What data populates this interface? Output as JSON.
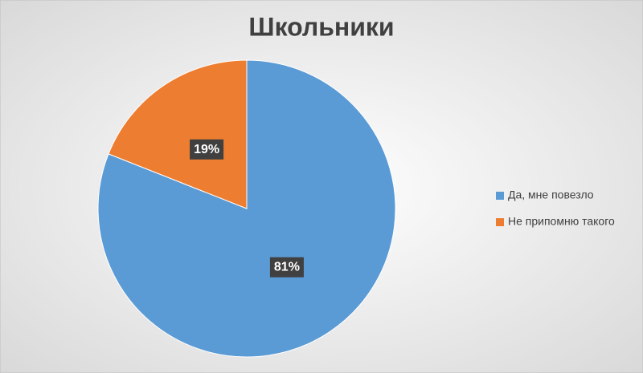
{
  "chart_data": {
    "type": "pie",
    "title": "Школьники",
    "categories": [
      "Да, мне повезло",
      "Не припомню такого"
    ],
    "values": [
      81,
      19
    ],
    "value_labels": [
      "81%",
      "19%"
    ],
    "colors": [
      "#5b9bd5",
      "#ed7d31"
    ],
    "legend": "right"
  }
}
